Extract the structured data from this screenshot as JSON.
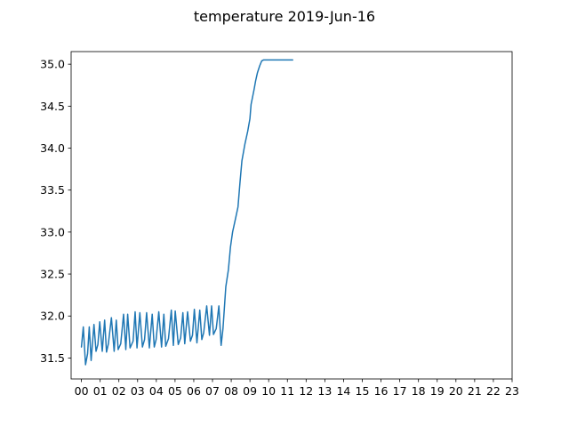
{
  "chart_data": {
    "type": "line",
    "title": "temperature 2019-Jun-16",
    "xlabel": "",
    "ylabel": "",
    "xlim": [
      -0.55,
      23.0
    ],
    "ylim": [
      31.25,
      35.15
    ],
    "x_ticks": [
      0,
      1,
      2,
      3,
      4,
      5,
      6,
      7,
      8,
      9,
      10,
      11,
      12,
      13,
      14,
      15,
      16,
      17,
      18,
      19,
      20,
      21,
      22,
      23
    ],
    "x_tick_labels": [
      "00",
      "01",
      "02",
      "03",
      "04",
      "05",
      "06",
      "07",
      "08",
      "09",
      "10",
      "11",
      "12",
      "13",
      "14",
      "15",
      "16",
      "17",
      "18",
      "19",
      "20",
      "21",
      "22",
      "23"
    ],
    "y_ticks": [
      31.5,
      32.0,
      32.5,
      33.0,
      33.5,
      34.0,
      34.5,
      35.0
    ],
    "y_tick_labels": [
      "31.5",
      "32.0",
      "32.5",
      "33.0",
      "33.5",
      "34.0",
      "34.5",
      "35.0"
    ],
    "grid": false,
    "series": [
      {
        "color": "#1f77b4",
        "x": [
          0.0,
          0.1,
          0.22,
          0.33,
          0.42,
          0.52,
          0.67,
          0.78,
          0.88,
          0.98,
          1.11,
          1.24,
          1.34,
          1.44,
          1.6,
          1.75,
          1.86,
          1.96,
          2.1,
          2.25,
          2.37,
          2.47,
          2.6,
          2.76,
          2.87,
          2.97,
          3.12,
          3.26,
          3.37,
          3.48,
          3.63,
          3.78,
          3.89,
          3.99,
          4.13,
          4.28,
          4.4,
          4.5,
          4.65,
          4.8,
          4.91,
          5.01,
          5.17,
          5.3,
          5.42,
          5.52,
          5.67,
          5.82,
          5.93,
          6.03,
          6.17,
          6.32,
          6.43,
          6.53,
          6.69,
          6.84,
          6.95,
          7.05,
          7.2,
          7.34,
          7.46,
          7.56,
          7.71,
          7.85,
          7.96,
          8.07,
          8.22,
          8.36,
          8.47,
          8.57,
          8.73,
          8.88,
          9.0,
          9.06,
          9.15,
          9.22,
          9.3,
          9.4,
          9.52,
          9.63,
          9.72,
          9.82,
          9.92,
          10.02,
          10.12,
          10.25,
          10.36,
          10.48,
          10.6,
          10.72,
          10.85,
          10.98,
          11.1,
          11.2,
          11.28
        ],
        "y": [
          31.63,
          31.87,
          31.42,
          31.55,
          31.87,
          31.47,
          31.9,
          31.58,
          31.66,
          31.93,
          31.58,
          31.95,
          31.57,
          31.67,
          31.98,
          31.58,
          31.95,
          31.6,
          31.67,
          32.02,
          31.6,
          32.02,
          31.62,
          31.7,
          32.05,
          31.62,
          32.04,
          31.63,
          31.72,
          32.04,
          31.62,
          32.02,
          31.63,
          31.72,
          32.05,
          31.63,
          32.02,
          31.64,
          31.73,
          32.07,
          31.65,
          32.06,
          31.66,
          31.74,
          32.04,
          31.67,
          32.05,
          31.7,
          31.77,
          32.08,
          31.68,
          32.07,
          31.72,
          31.8,
          32.12,
          31.77,
          32.12,
          31.78,
          31.85,
          32.12,
          31.65,
          31.85,
          32.35,
          32.55,
          32.82,
          33.0,
          33.15,
          33.3,
          33.6,
          33.85,
          34.05,
          34.2,
          34.35,
          34.52,
          34.62,
          34.7,
          34.8,
          34.9,
          34.98,
          35.04,
          35.05,
          35.05,
          35.05,
          35.05,
          35.05,
          35.05,
          35.05,
          35.05,
          35.05,
          35.05,
          35.05,
          35.05,
          35.05,
          35.05,
          35.05
        ]
      }
    ]
  }
}
